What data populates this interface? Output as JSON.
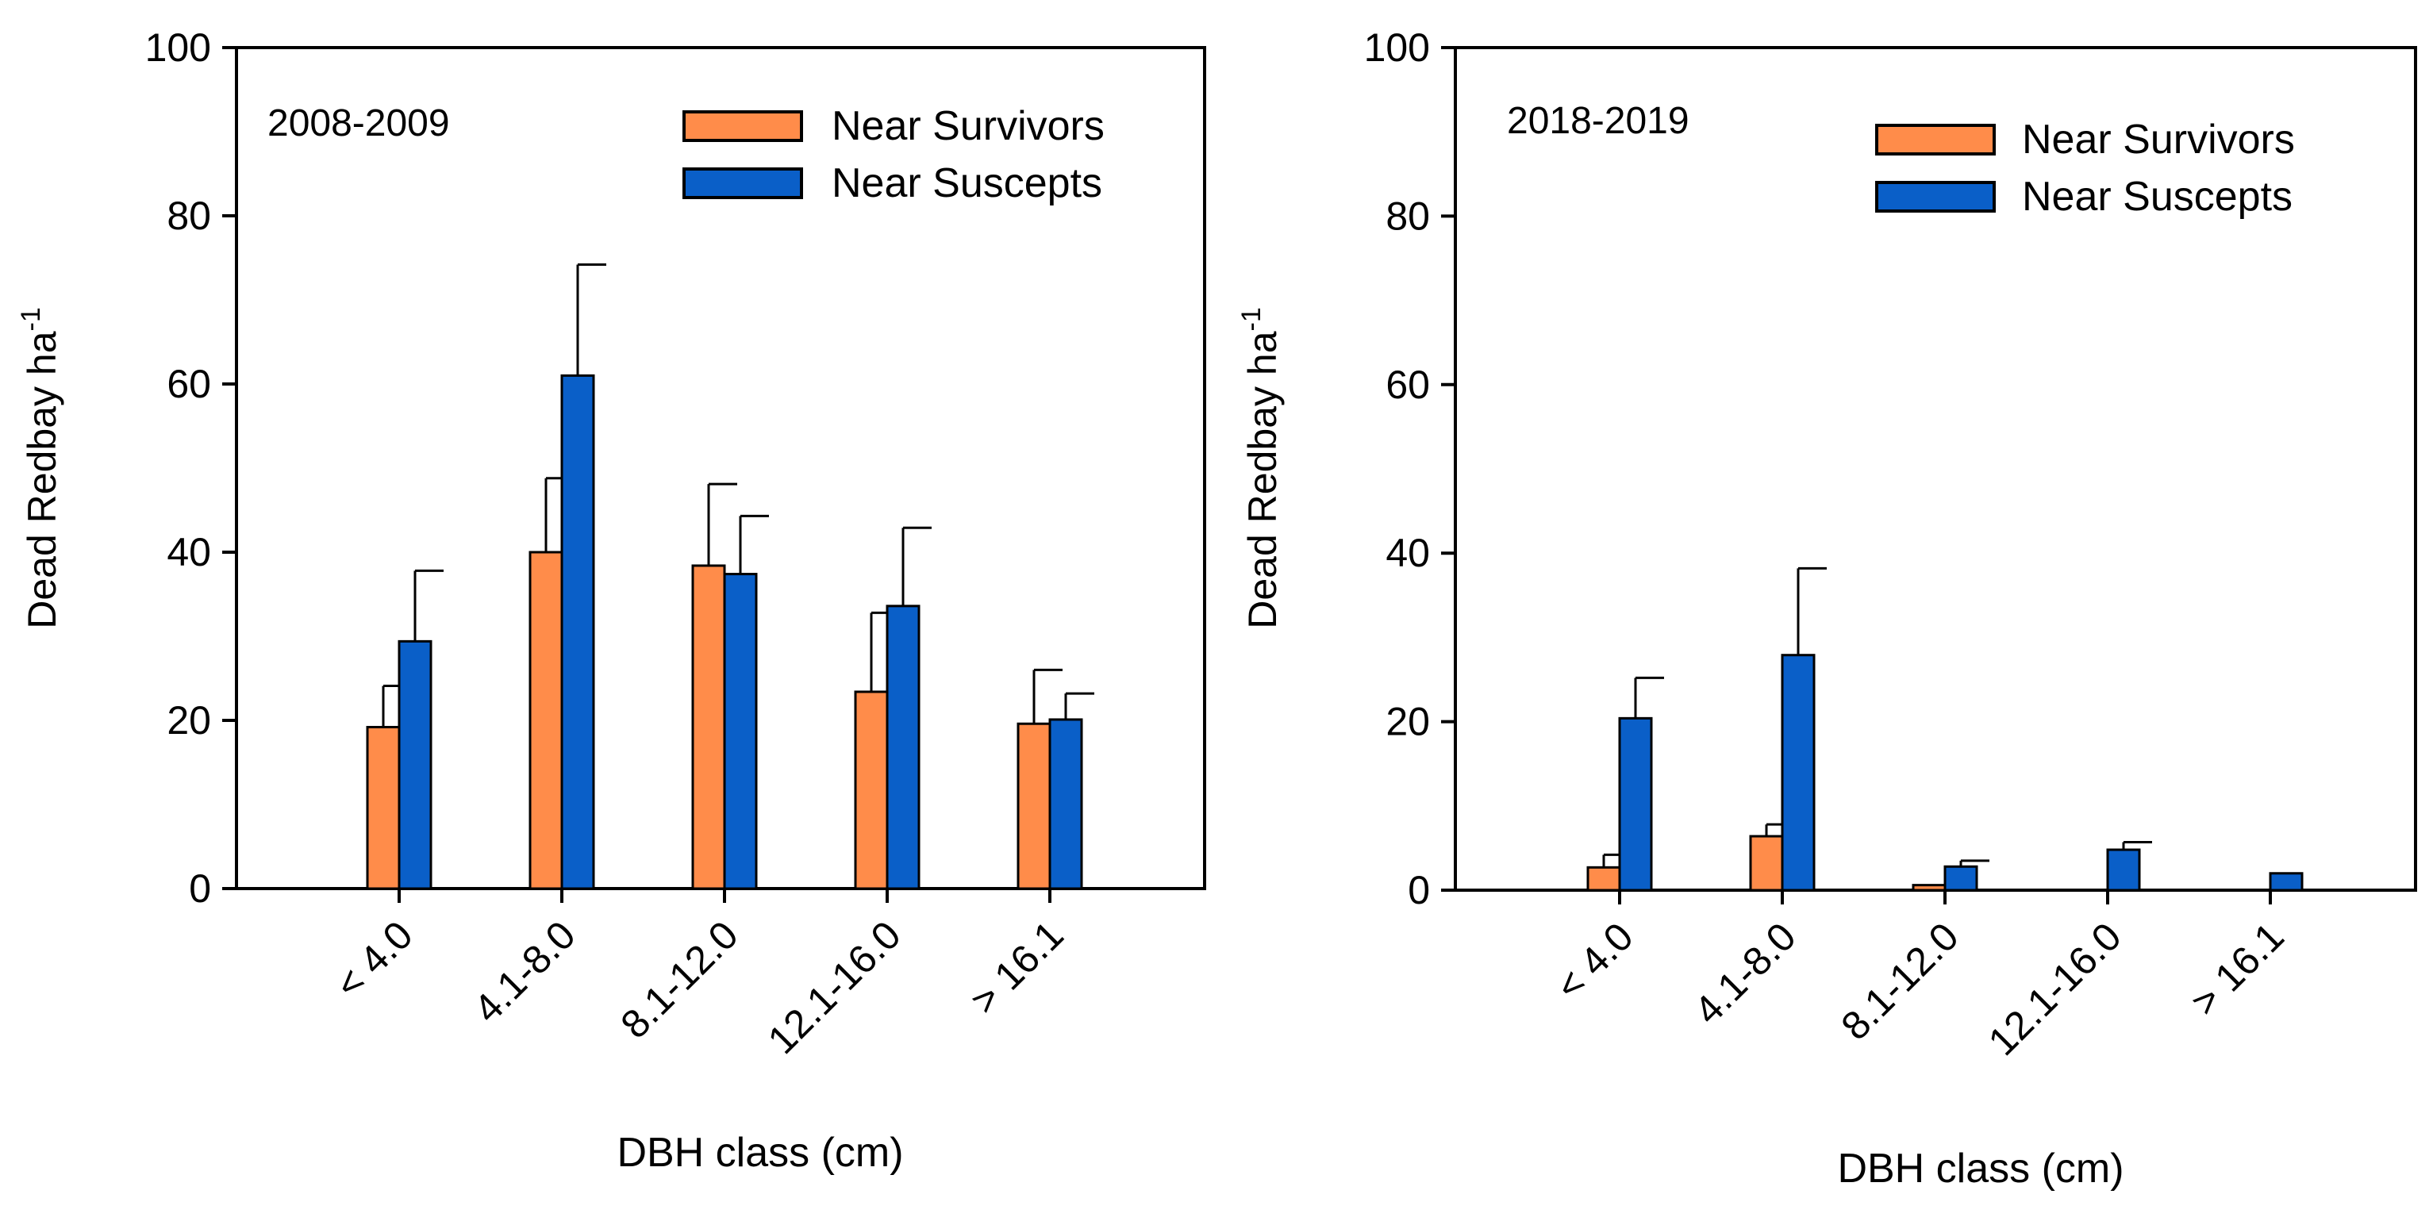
{
  "figure": {
    "colors": {
      "survivors": "#ff8c4a",
      "suscepts": "#0a5fc8",
      "axis": "#000000"
    }
  },
  "chart_data": [
    {
      "type": "bar",
      "panel_label": "2008-2009",
      "categories": [
        "< 4.0",
        "4.1-8.0",
        "8.1-12.0",
        "12.1-16.0",
        "> 16.1"
      ],
      "xlabel": "DBH class (cm)",
      "ylabel_main": "Dead Redbay ha",
      "ylabel_sup": "-1",
      "ylim": [
        0,
        100
      ],
      "yticks": [
        0,
        20,
        40,
        60,
        80,
        100
      ],
      "legend_position": "top-right",
      "series": [
        {
          "name": "Near Survivors",
          "values": [
            19.2,
            40.0,
            38.4,
            23.4,
            19.6
          ],
          "errors": [
            4.9,
            8.8,
            9.7,
            9.4,
            6.4
          ]
        },
        {
          "name": "Near Suscepts",
          "values": [
            29.4,
            61.0,
            37.4,
            33.6,
            20.1
          ],
          "errors": [
            8.4,
            13.2,
            6.9,
            9.3,
            3.1
          ]
        }
      ]
    },
    {
      "type": "bar",
      "panel_label": "2018-2019",
      "categories": [
        "< 4.0",
        "4.1-8.0",
        "8.1-12.0",
        "12.1-16.0",
        "> 16.1"
      ],
      "xlabel": "DBH class (cm)",
      "ylabel_main": "Dead Redbay ha",
      "ylabel_sup": "-1",
      "ylim": [
        0,
        100
      ],
      "yticks": [
        0,
        20,
        40,
        60,
        80,
        100
      ],
      "legend_position": "top-right",
      "series": [
        {
          "name": "Near Survivors",
          "values": [
            2.7,
            6.4,
            0.6,
            0,
            0
          ],
          "errors": [
            1.5,
            1.4,
            0,
            0,
            0
          ]
        },
        {
          "name": "Near Suscepts",
          "values": [
            20.4,
            27.9,
            2.8,
            4.8,
            2.0
          ],
          "errors": [
            4.8,
            10.3,
            0.7,
            0.9,
            0
          ]
        }
      ]
    }
  ]
}
